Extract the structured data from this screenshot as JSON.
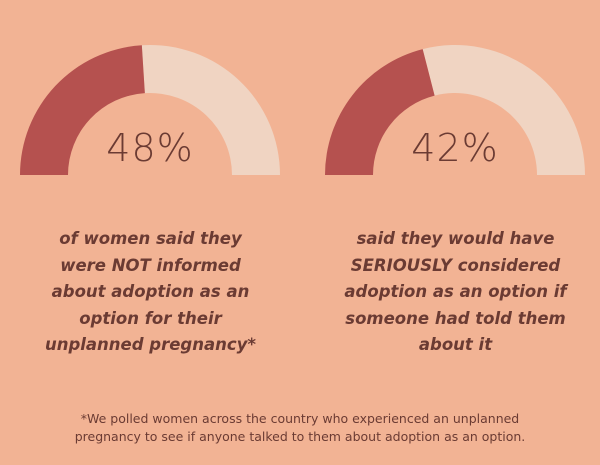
{
  "colors": {
    "background": "#f2b394",
    "filled_arc": "#b5514f",
    "remaining_arc": "#f0d4c2",
    "text": "#6b3b33"
  },
  "chart_data": [
    {
      "type": "gauge",
      "value": 48,
      "max": 100,
      "label": "48%",
      "caption_lines": [
        "of women said they",
        "were NOT informed",
        "about adoption as an",
        "option for their",
        "unplanned pregnancy*"
      ]
    },
    {
      "type": "gauge",
      "value": 42,
      "max": 100,
      "label": "42%",
      "caption_lines": [
        "said they would have",
        "SERIOUSLY considered",
        "adoption as an option if",
        "someone had told them",
        "about it"
      ]
    }
  ],
  "footnote": {
    "lines": [
      "*We polled women across the country who experienced an unplanned",
      "pregnancy to see if anyone talked to them about adoption as an option."
    ]
  }
}
